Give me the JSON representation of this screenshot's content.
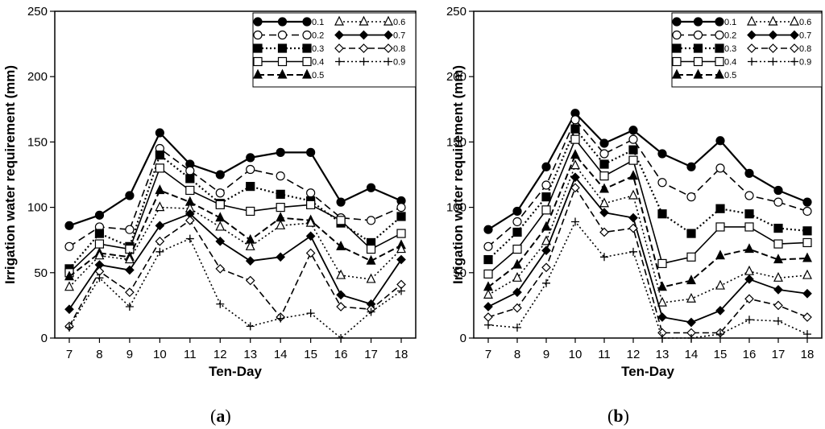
{
  "chart_data": [
    {
      "type": "line",
      "panel_label": "a",
      "xlabel": "Ten-Day",
      "ylabel": "Irrigation water requirement (mm)",
      "x": [
        7,
        8,
        9,
        10,
        11,
        12,
        13,
        14,
        15,
        16,
        17,
        18
      ],
      "xlim": [
        7,
        18
      ],
      "ylim": [
        0,
        250
      ],
      "yticks": [
        0,
        50,
        100,
        150,
        200,
        250
      ],
      "grid": false,
      "legend_position": "top-right",
      "series": [
        {
          "name": "0.1",
          "values": [
            86,
            94,
            109,
            157,
            133,
            125,
            138,
            142,
            142,
            104,
            115,
            105
          ]
        },
        {
          "name": "0.2",
          "values": [
            70,
            85,
            83,
            145,
            128,
            111,
            129,
            124,
            111,
            92,
            90,
            100
          ]
        },
        {
          "name": "0.3",
          "values": [
            53,
            80,
            70,
            140,
            122,
            103,
            116,
            110,
            105,
            88,
            73,
            93
          ]
        },
        {
          "name": "0.4",
          "values": [
            50,
            72,
            68,
            130,
            113,
            102,
            97,
            100,
            102,
            90,
            68,
            80
          ]
        },
        {
          "name": "0.5",
          "values": [
            47,
            65,
            62,
            113,
            104,
            92,
            75,
            92,
            90,
            70,
            59,
            71
          ]
        },
        {
          "name": "0.6",
          "values": [
            39,
            63,
            60,
            100,
            99,
            85,
            70,
            86,
            88,
            48,
            45,
            68
          ]
        },
        {
          "name": "0.7",
          "values": [
            22,
            56,
            52,
            86,
            95,
            74,
            59,
            62,
            78,
            33,
            26,
            60
          ]
        },
        {
          "name": "0.8",
          "values": [
            9,
            51,
            35,
            74,
            90,
            53,
            44,
            16,
            65,
            24,
            22,
            41
          ]
        },
        {
          "name": "0.9",
          "values": [
            8,
            46,
            24,
            66,
            76,
            26,
            9,
            15,
            19,
            0,
            20,
            36
          ]
        }
      ]
    },
    {
      "type": "line",
      "panel_label": "b",
      "xlabel": "Ten-Day",
      "ylabel": "Irrigation water requirement (mm)",
      "x": [
        7,
        8,
        9,
        10,
        11,
        12,
        13,
        14,
        15,
        16,
        17,
        18
      ],
      "xlim": [
        7,
        18
      ],
      "ylim": [
        0,
        250
      ],
      "yticks": [
        0,
        50,
        100,
        150,
        200,
        250
      ],
      "grid": false,
      "legend_position": "top-right",
      "series": [
        {
          "name": "0.1",
          "values": [
            83,
            97,
            131,
            172,
            149,
            159,
            141,
            131,
            151,
            126,
            113,
            104
          ]
        },
        {
          "name": "0.2",
          "values": [
            70,
            89,
            117,
            167,
            141,
            152,
            119,
            108,
            130,
            109,
            104,
            97
          ]
        },
        {
          "name": "0.3",
          "values": [
            60,
            81,
            108,
            160,
            133,
            144,
            95,
            80,
            99,
            95,
            84,
            82
          ]
        },
        {
          "name": "0.4",
          "values": [
            49,
            68,
            98,
            152,
            124,
            136,
            57,
            62,
            85,
            85,
            72,
            73
          ]
        },
        {
          "name": "0.5",
          "values": [
            39,
            56,
            85,
            140,
            114,
            124,
            39,
            44,
            63,
            68,
            60,
            61
          ]
        },
        {
          "name": "0.6",
          "values": [
            33,
            46,
            74,
            132,
            103,
            109,
            27,
            30,
            40,
            51,
            46,
            48
          ]
        },
        {
          "name": "0.7",
          "values": [
            24,
            35,
            67,
            123,
            96,
            92,
            16,
            12,
            21,
            45,
            37,
            34
          ]
        },
        {
          "name": "0.8",
          "values": [
            16,
            23,
            54,
            115,
            81,
            84,
            4,
            4,
            4,
            30,
            25,
            16
          ]
        },
        {
          "name": "0.9",
          "values": [
            10,
            8,
            42,
            89,
            62,
            66,
            0,
            0,
            3,
            14,
            13,
            3
          ]
        }
      ]
    }
  ]
}
